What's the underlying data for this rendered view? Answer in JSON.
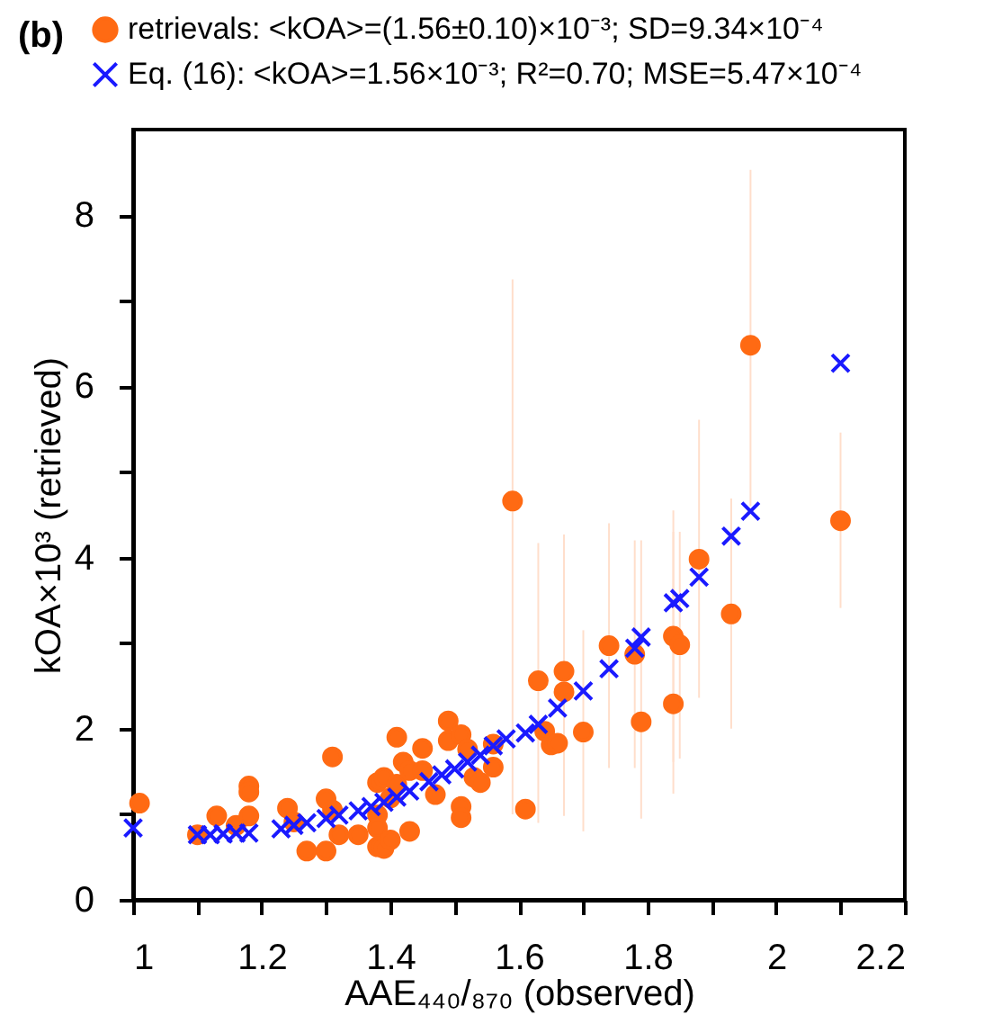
{
  "chart_data": {
    "type": "scatter",
    "title": "(b)",
    "xlabel": "AAE₄₄₀/₈₇₀ (observed)",
    "ylabel": "kOA×10³ (retrieved)",
    "xlim": [
      1,
      2.2
    ],
    "ylim": [
      0,
      9
    ],
    "xticks": [
      1,
      {
        "value": 1.1,
        "label": null
      },
      1.2,
      {
        "value": 1.3,
        "label": null
      },
      1.4,
      {
        "value": 1.5,
        "label": null
      },
      1.6,
      {
        "value": 1.7,
        "label": null
      },
      1.8,
      {
        "value": 1.9,
        "label": null
      },
      2,
      {
        "value": 2.1,
        "label": null
      },
      2.2
    ],
    "yticks": [
      0,
      {
        "value": 1,
        "label": null
      },
      2,
      {
        "value": 3,
        "label": null
      },
      4,
      {
        "value": 5,
        "label": null
      },
      6,
      {
        "value": 7,
        "label": null
      },
      8
    ],
    "grid": false,
    "legend": "top left",
    "series": [
      {
        "name": "retrievals: <kOA>=(1.56±0.10)×10⁻³; SD=9.34×10⁻⁴",
        "color": "#ff6a13",
        "marker": "circle",
        "x": [
          1.01,
          1.1,
          1.13,
          1.16,
          1.18,
          1.18,
          1.18,
          1.24,
          1.25,
          1.27,
          1.3,
          1.3,
          1.31,
          1.31,
          1.32,
          1.35,
          1.38,
          1.38,
          1.38,
          1.38,
          1.39,
          1.39,
          1.4,
          1.4,
          1.41,
          1.41,
          1.42,
          1.43,
          1.43,
          1.45,
          1.45,
          1.47,
          1.49,
          1.49,
          1.51,
          1.51,
          1.51,
          1.52,
          1.53,
          1.54,
          1.56,
          1.56,
          1.59,
          1.61,
          1.63,
          1.64,
          1.65,
          1.66,
          1.67,
          1.67,
          1.7,
          1.74,
          1.78,
          1.79,
          1.84,
          1.84,
          1.85,
          1.88,
          1.93,
          1.96,
          2.1
        ],
        "values": [
          1.13,
          0.76,
          0.98,
          0.87,
          1.33,
          1.26,
          0.98,
          1.07,
          0.91,
          0.57,
          1.18,
          0.57,
          1.67,
          1.05,
          0.76,
          0.76,
          1.37,
          0.99,
          0.84,
          0.62,
          1.43,
          0.6,
          1.19,
          0.7,
          1.9,
          1.35,
          1.61,
          1.51,
          0.8,
          1.77,
          1.51,
          1.23,
          2.09,
          1.86,
          1.93,
          1.09,
          0.96,
          1.76,
          1.43,
          1.37,
          1.82,
          1.55,
          4.66,
          1.06,
          2.56,
          1.97,
          1.81,
          1.83,
          2.67,
          2.43,
          1.96,
          2.97,
          2.87,
          2.08,
          3.08,
          2.29,
          2.98,
          3.98,
          3.34,
          6.48,
          4.43
        ],
        "errors": [
          null,
          null,
          null,
          null,
          null,
          null,
          null,
          null,
          null,
          null,
          null,
          null,
          null,
          null,
          null,
          null,
          null,
          null,
          null,
          null,
          null,
          null,
          null,
          null,
          null,
          null,
          null,
          null,
          null,
          null,
          null,
          null,
          null,
          null,
          null,
          null,
          null,
          null,
          null,
          null,
          null,
          null,
          [
            1.0,
            7.25
          ],
          null,
          [
            0.9,
            4.17
          ],
          null,
          null,
          null,
          [
            0.98,
            4.27
          ],
          null,
          [
            0.8,
            3.15
          ],
          [
            1.54,
            4.4
          ],
          [
            1.54,
            4.2
          ],
          [
            0.95,
            4.2
          ],
          [
            1.61,
            4.55
          ],
          [
            1.24,
            4.3
          ],
          [
            1.65,
            4.3
          ],
          [
            2.36,
            5.61
          ],
          [
            2.0,
            4.69
          ],
          [
            4.6,
            8.53
          ],
          [
            3.41,
            5.46
          ]
        ]
      },
      {
        "name": "Eq. (16): <kOA>=1.56×10⁻³; R²=0.70; MSE=5.47×10⁻⁴",
        "color": "#1a1aff",
        "marker": "cross",
        "x": [
          1.0,
          1.1,
          1.12,
          1.14,
          1.16,
          1.18,
          1.23,
          1.25,
          1.27,
          1.3,
          1.32,
          1.35,
          1.37,
          1.39,
          1.41,
          1.43,
          1.46,
          1.48,
          1.5,
          1.52,
          1.54,
          1.56,
          1.58,
          1.61,
          1.63,
          1.66,
          1.7,
          1.74,
          1.78,
          1.79,
          1.84,
          1.85,
          1.88,
          1.93,
          1.96,
          2.1
        ],
        "values": [
          0.84,
          0.76,
          0.76,
          0.77,
          0.78,
          0.78,
          0.83,
          0.87,
          0.9,
          0.95,
          0.99,
          1.04,
          1.09,
          1.14,
          1.2,
          1.27,
          1.38,
          1.46,
          1.53,
          1.61,
          1.69,
          1.8,
          1.88,
          1.95,
          2.05,
          2.24,
          2.44,
          2.7,
          2.94,
          3.07,
          3.47,
          3.52,
          3.77,
          4.25,
          4.54,
          6.27
        ]
      }
    ]
  }
}
